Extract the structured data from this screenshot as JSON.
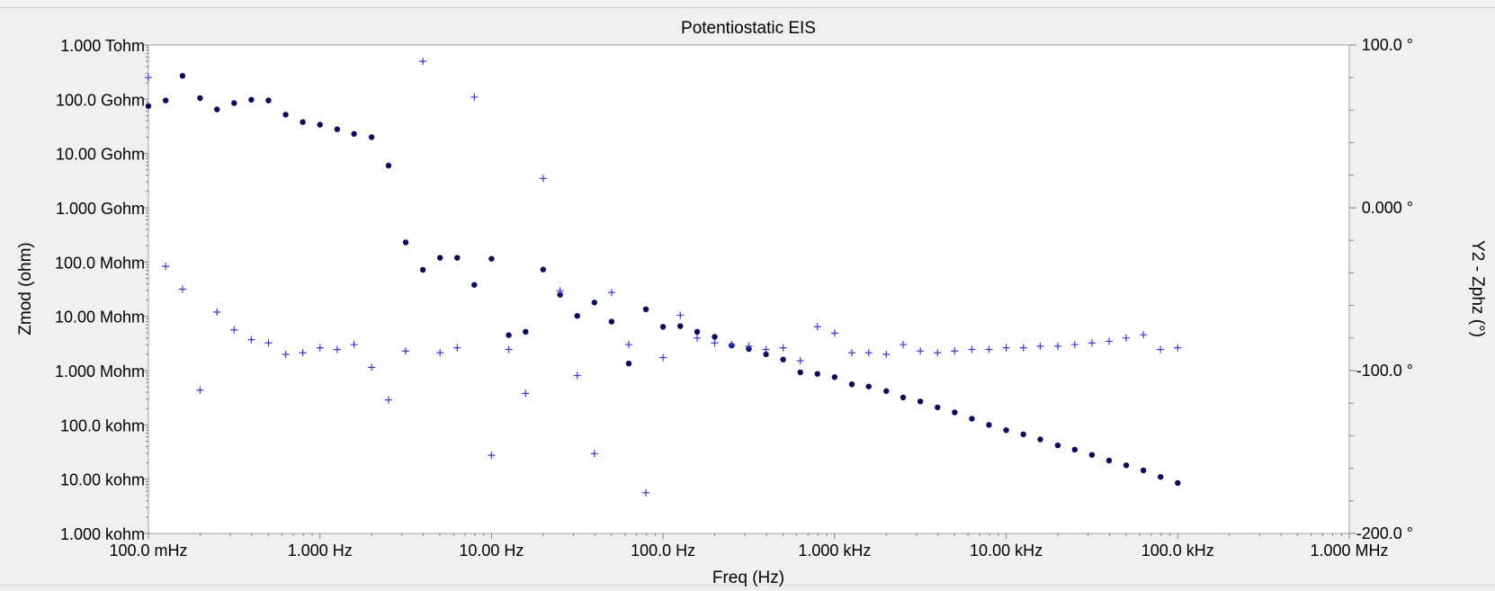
{
  "chart_data": {
    "type": "scatter",
    "title": "Potentiostatic EIS",
    "xlabel": "Freq (Hz)",
    "ylabel": "Zmod (ohm)",
    "y2label": "Y2 - Zphz (°)",
    "xscale": "log",
    "yscale": "log",
    "xlim": [
      0.1,
      1000000
    ],
    "ylim": [
      1000,
      1000000000000
    ],
    "y2lim": [
      -200,
      100
    ],
    "x_tick_labels": [
      "100.0 mHz",
      "1.000 Hz",
      "10.00 Hz",
      "100.0 Hz",
      "1.000 kHz",
      "10.00 kHz",
      "100.0 kHz",
      "1.000 MHz"
    ],
    "y_tick_labels": [
      "1.000 kohm",
      "10.00 kohm",
      "100.0 kohm",
      "1.000 Mohm",
      "10.00 Mohm",
      "100.0 Mohm",
      "1.000 Gohm",
      "10.00 Gohm",
      "100.0 Gohm",
      "1.000 Tohm"
    ],
    "y2_tick_labels": [
      "-200.0 °",
      "-100.0 °",
      "0.000 °",
      "100.0 °"
    ],
    "grid": false,
    "colors": {
      "series": "#0b0b5e",
      "phase": "#3a3ad6",
      "plot_bg": "#ffffff",
      "page_bg": "#f0f0f0"
    },
    "series": [
      {
        "marker": "dot",
        "axis": "y",
        "points": [
          [
            0.1,
            75000000000
          ],
          [
            0.126,
            95000000000
          ],
          [
            0.158,
            270000000000
          ],
          [
            0.2,
            105000000000
          ],
          [
            0.251,
            65000000000
          ],
          [
            0.316,
            85000000000
          ],
          [
            0.398,
            98000000000
          ],
          [
            0.501,
            95000000000
          ],
          [
            0.631,
            52000000000
          ],
          [
            0.794,
            38000000000
          ],
          [
            1.0,
            34000000000
          ],
          [
            1.26,
            28000000000
          ],
          [
            1.58,
            23000000000
          ],
          [
            2.0,
            20000000000
          ],
          [
            2.51,
            6000000000
          ],
          [
            3.16,
            230000000
          ],
          [
            3.98,
            72000000
          ],
          [
            5.01,
            120000000
          ],
          [
            6.31,
            120000000
          ],
          [
            7.94,
            38000000
          ],
          [
            10.0,
            115000000
          ],
          [
            12.6,
            4500000
          ],
          [
            15.8,
            5200000
          ],
          [
            20.0,
            73000000
          ],
          [
            25.1,
            25000000
          ],
          [
            31.6,
            10200000
          ],
          [
            39.8,
            18000000
          ],
          [
            50.1,
            8000000
          ],
          [
            63.1,
            1350000
          ],
          [
            79.4,
            13500000
          ],
          [
            100,
            6400000
          ],
          [
            126,
            6600000
          ],
          [
            158,
            5200000
          ],
          [
            200,
            4200000
          ],
          [
            251,
            2900000
          ],
          [
            316,
            2500000
          ],
          [
            398,
            2000000
          ],
          [
            501,
            1600000
          ],
          [
            631,
            930000
          ],
          [
            794,
            870000
          ],
          [
            1000,
            760000
          ],
          [
            1260,
            560000
          ],
          [
            1580,
            510000
          ],
          [
            2000,
            420000
          ],
          [
            2510,
            320000
          ],
          [
            3160,
            270000
          ],
          [
            3980,
            210000
          ],
          [
            5010,
            170000
          ],
          [
            6310,
            130000
          ],
          [
            7940,
            100000
          ],
          [
            10000,
            80000
          ],
          [
            12600,
            67000
          ],
          [
            15800,
            54000
          ],
          [
            20000,
            42000
          ],
          [
            25100,
            35000
          ],
          [
            31600,
            28000
          ],
          [
            39800,
            22000
          ],
          [
            50100,
            18000
          ],
          [
            63100,
            14500
          ],
          [
            79400,
            11000
          ],
          [
            100000,
            8500
          ]
        ]
      },
      {
        "marker": "plus",
        "axis": "y2",
        "points": [
          [
            0.1,
            80
          ],
          [
            0.126,
            -36
          ],
          [
            0.158,
            -50
          ],
          [
            0.2,
            -112
          ],
          [
            0.251,
            -64
          ],
          [
            0.316,
            -75
          ],
          [
            0.398,
            -81
          ],
          [
            0.501,
            -83
          ],
          [
            0.631,
            -90
          ],
          [
            0.794,
            -89
          ],
          [
            1.0,
            -86
          ],
          [
            1.26,
            -87
          ],
          [
            1.58,
            -84
          ],
          [
            2.0,
            -98
          ],
          [
            2.51,
            -118
          ],
          [
            3.16,
            -88
          ],
          [
            3.98,
            90
          ],
          [
            5.01,
            -89
          ],
          [
            6.31,
            -86
          ],
          [
            7.94,
            68
          ],
          [
            10.0,
            -152
          ],
          [
            12.6,
            -87
          ],
          [
            15.8,
            -114
          ],
          [
            20.0,
            18
          ],
          [
            25.1,
            -51
          ],
          [
            31.6,
            -103
          ],
          [
            39.8,
            -151
          ],
          [
            50.1,
            -52
          ],
          [
            63.1,
            -84
          ],
          [
            79.4,
            -175
          ],
          [
            100,
            -92
          ],
          [
            126,
            -66
          ],
          [
            158,
            -80
          ],
          [
            200,
            -83
          ],
          [
            251,
            -84
          ],
          [
            316,
            -85
          ],
          [
            398,
            -87
          ],
          [
            501,
            -86
          ],
          [
            631,
            -94
          ],
          [
            794,
            -73
          ],
          [
            1000,
            -77
          ],
          [
            1260,
            -89
          ],
          [
            1580,
            -89
          ],
          [
            2000,
            -90
          ],
          [
            2510,
            -84
          ],
          [
            3160,
            -88
          ],
          [
            3980,
            -89
          ],
          [
            5010,
            -88
          ],
          [
            6310,
            -87
          ],
          [
            7940,
            -87
          ],
          [
            10000,
            -86
          ],
          [
            12600,
            -86
          ],
          [
            15800,
            -85
          ],
          [
            20000,
            -85
          ],
          [
            25100,
            -84
          ],
          [
            31600,
            -83
          ],
          [
            39800,
            -82
          ],
          [
            50100,
            -80
          ],
          [
            63100,
            -78
          ],
          [
            79400,
            -87
          ],
          [
            100000,
            -86
          ]
        ]
      }
    ]
  }
}
